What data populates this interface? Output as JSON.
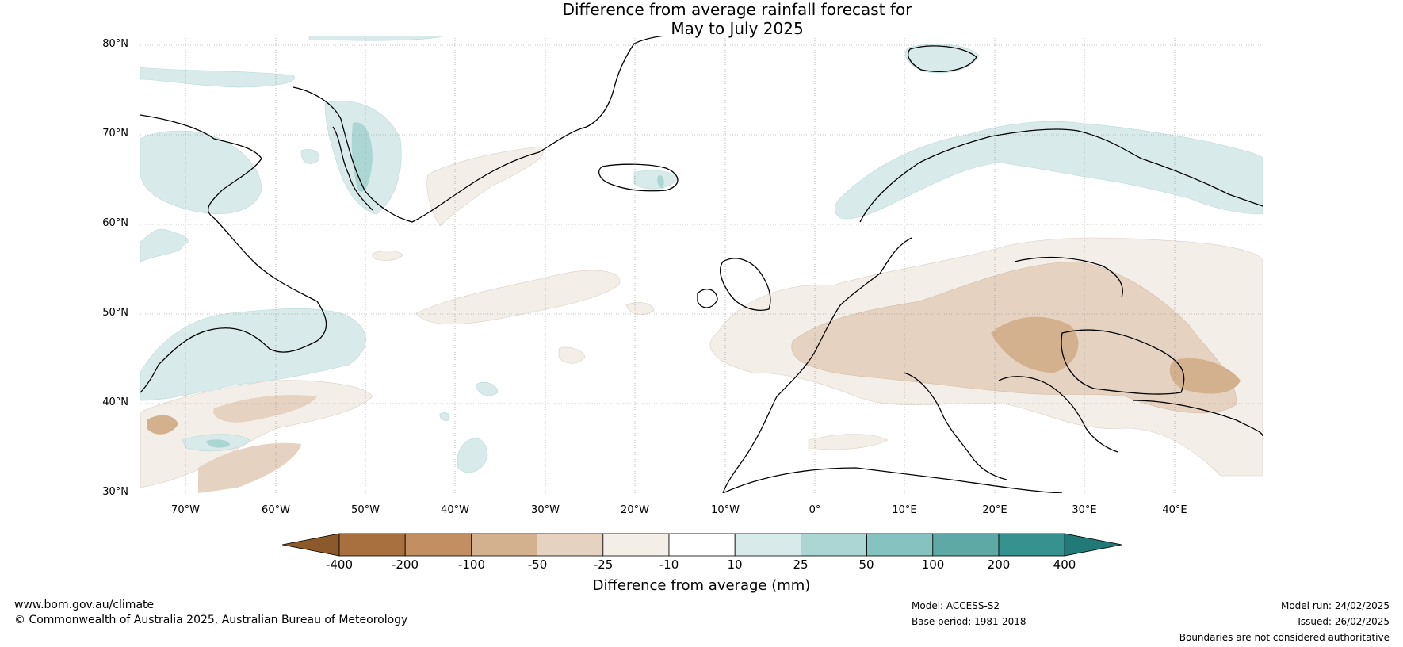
{
  "title": {
    "line1": "Difference from average rainfall forecast for",
    "line2": "May to July 2025"
  },
  "axes": {
    "lat_labels": [
      "80°N",
      "70°N",
      "60°N",
      "50°N",
      "40°N",
      "30°N"
    ],
    "lon_labels": [
      "70°W",
      "60°W",
      "50°W",
      "40°W",
      "30°W",
      "20°W",
      "10°W",
      "0°",
      "10°E",
      "20°E",
      "30°E",
      "40°E"
    ]
  },
  "colorbar": {
    "label": "Difference from average (mm)",
    "ticks": [
      "-400",
      "-200",
      "-100",
      "-50",
      "-25",
      "-10",
      "10",
      "25",
      "50",
      "100",
      "200",
      "400"
    ],
    "colors": [
      "#8c5a2a",
      "#a8703f",
      "#c28f63",
      "#d3b08e",
      "#e6d2c0",
      "#f3eee8",
      "#ffffff",
      "#d8ebea",
      "#acd6d4",
      "#86c2bf",
      "#5ea9a6",
      "#36928f",
      "#217a77"
    ]
  },
  "footer": {
    "website": "www.bom.gov.au/climate",
    "copyright": "© Commonwealth of Australia 2025, Australian Bureau of Meteorology",
    "model": "Model: ACCESS-S2",
    "base_period": "Base period: 1981-2018",
    "model_run": "Model run: 24/02/2025",
    "issued": "Issued: 26/02/2025",
    "disclaimer": "Boundaries are not considered authoritative"
  }
}
